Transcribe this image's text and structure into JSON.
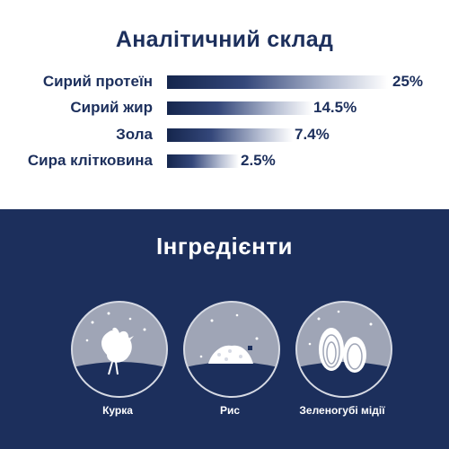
{
  "analysis": {
    "title": "Аналітичний склад",
    "rows": [
      {
        "label": "Сирий протеїн",
        "value": "25%",
        "amount": 25
      },
      {
        "label": "Сирий жир",
        "value": "14.5%",
        "amount": 14.5
      },
      {
        "label": "Зола",
        "value": "7.4%",
        "amount": 7.4
      },
      {
        "label": "Сира клітковина",
        "value": "2.5%",
        "amount": 2.5
      }
    ]
  },
  "ingredients": {
    "title": "Інгредієнти",
    "items": [
      {
        "label": "Курка",
        "icon": "chicken-icon"
      },
      {
        "label": "Рис",
        "icon": "rice-icon"
      },
      {
        "label": "Зеленогубі мідії",
        "icon": "mussel-icon"
      }
    ]
  },
  "colors": {
    "navy": "#1c2f5c",
    "circle": "#9fa5b6",
    "white": "#ffffff"
  }
}
